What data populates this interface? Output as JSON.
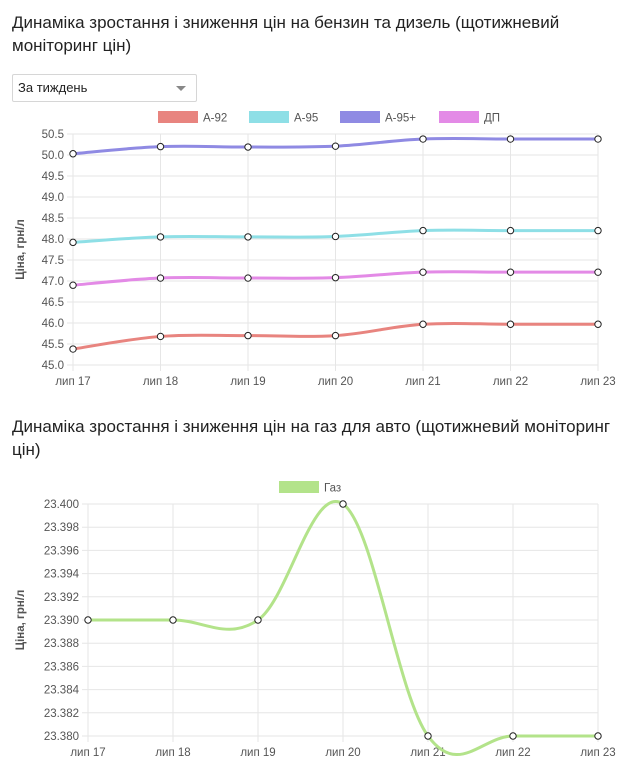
{
  "charts_titles": {
    "fuel": "Динаміка зростання і зниження цін на бензин та дизель (щотижневий моніторинг цін)",
    "gas": "Динаміка зростання і зниження цін на газ для авто (щотижневий моніторинг цін)"
  },
  "period_select": {
    "value": "За тиждень"
  },
  "chart_data": [
    {
      "type": "line",
      "title": "Динаміка зростання і зниження цін на бензин та дизель (щотижневий моніторинг цін)",
      "ylabel": "Ціна, грн/л",
      "xlabel": "",
      "x": [
        "лип 17",
        "лип 18",
        "лип 19",
        "лип 20",
        "лип 21",
        "лип 22",
        "лип 23"
      ],
      "ylim": [
        45.0,
        50.5
      ],
      "yticks": [
        "50.5",
        "50.0",
        "49.5",
        "49.0",
        "48.5",
        "48.0",
        "47.5",
        "47.0",
        "46.5",
        "46.0",
        "45.5",
        "45.0"
      ],
      "grid": true,
      "legend_position": "top",
      "series": [
        {
          "name": "А-92",
          "color": "#e8847f",
          "values": [
            45.38,
            45.68,
            45.7,
            45.7,
            45.97,
            45.97,
            45.97
          ]
        },
        {
          "name": "А-95",
          "color": "#8edfe6",
          "values": [
            47.92,
            48.05,
            48.05,
            48.06,
            48.2,
            48.2,
            48.2
          ]
        },
        {
          "name": "А-95+",
          "color": "#8f8ae3",
          "values": [
            50.03,
            50.2,
            50.19,
            50.21,
            50.38,
            50.38,
            50.38
          ]
        },
        {
          "name": "ДП",
          "color": "#e38ae6",
          "values": [
            46.9,
            47.07,
            47.07,
            47.08,
            47.21,
            47.21,
            47.21
          ]
        }
      ]
    },
    {
      "type": "line",
      "title": "Динаміка зростання і зниження цін на газ для авто (щотижневий моніторинг цін)",
      "ylabel": "Ціна, грн/л",
      "xlabel": "",
      "x": [
        "лип 17",
        "лип 18",
        "лип 19",
        "лип 20",
        "лип 21",
        "лип 22",
        "лип 23"
      ],
      "ylim": [
        23.38,
        23.4
      ],
      "yticks": [
        "23.400",
        "23.398",
        "23.396",
        "23.394",
        "23.392",
        "23.390",
        "23.388",
        "23.386",
        "23.384",
        "23.382",
        "23.380"
      ],
      "grid": true,
      "legend_position": "top",
      "series": [
        {
          "name": "Газ",
          "color": "#b3e38a",
          "values": [
            23.39,
            23.39,
            23.39,
            23.4,
            23.38,
            23.38,
            23.38
          ]
        }
      ]
    }
  ]
}
